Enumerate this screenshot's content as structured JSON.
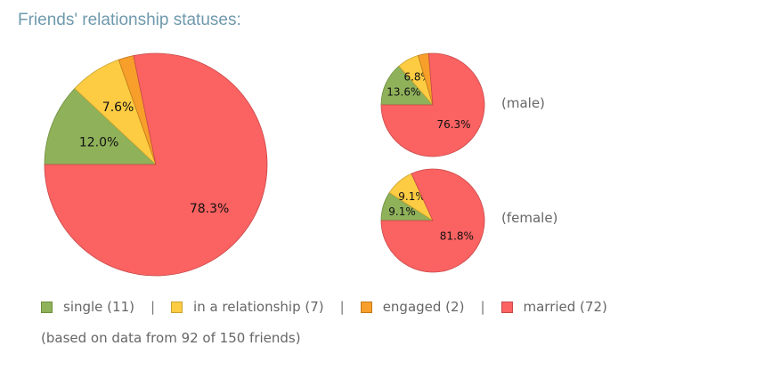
{
  "title": "Friends' relationship statuses:",
  "colors": {
    "single": "#8fb15a",
    "in_a_relationship": "#fdcc43",
    "engaged": "#f79f2a",
    "married": "#fb6262"
  },
  "legend": [
    {
      "label": "single (11)",
      "color": "#8fb15a",
      "border": "#6f8f3d"
    },
    {
      "label": "in a relationship (7)",
      "color": "#fdcc43",
      "border": "#c9a22e"
    },
    {
      "label": "engaged (2)",
      "color": "#f79f2a",
      "border": "#c27a1c"
    },
    {
      "label": "married (72)",
      "color": "#fb6262",
      "border": "#c84848"
    }
  ],
  "separator": "|",
  "note": "(based on data from 92 of 150 friends)",
  "chart_data": [
    {
      "type": "pie",
      "title": "",
      "categories": [
        "single",
        "in a relationship",
        "engaged",
        "married"
      ],
      "values": [
        12.0,
        7.6,
        2.2,
        78.3
      ],
      "labels": [
        "12.0%",
        "7.6%",
        "",
        "78.3%"
      ]
    },
    {
      "type": "pie",
      "title": "(male)",
      "categories": [
        "single",
        "in a relationship",
        "engaged",
        "married"
      ],
      "values": [
        13.6,
        6.8,
        3.3,
        76.3
      ],
      "labels": [
        "13.6%",
        "6.8%",
        "",
        "76.3%"
      ]
    },
    {
      "type": "pie",
      "title": "(female)",
      "categories": [
        "single",
        "in a relationship",
        "engaged",
        "married"
      ],
      "values": [
        9.1,
        9.1,
        0,
        81.8
      ],
      "labels": [
        "9.1%",
        "9.1%",
        "",
        "81.8%"
      ]
    }
  ]
}
